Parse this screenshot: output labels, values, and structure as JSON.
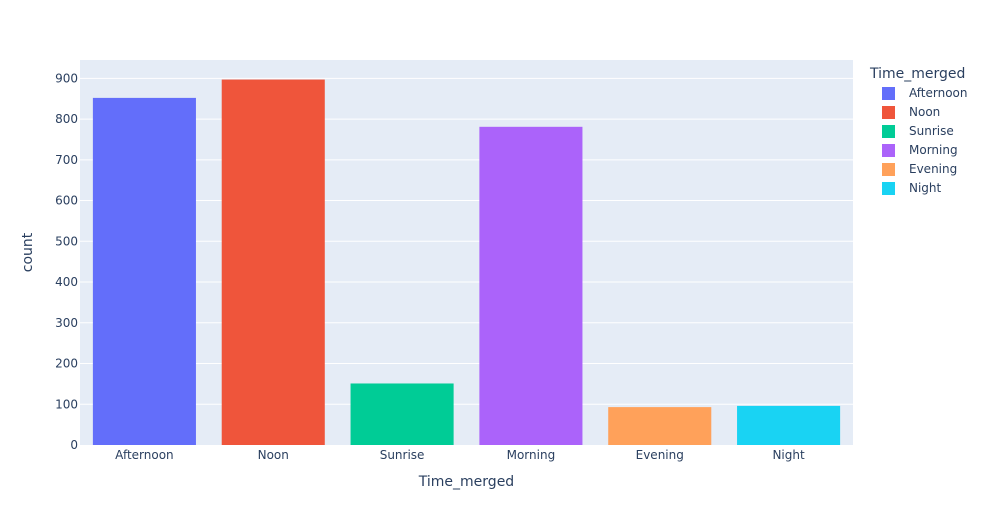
{
  "chart_data": {
    "type": "bar",
    "title": "",
    "xlabel": "Time_merged",
    "ylabel": "count",
    "ylim": [
      0,
      945
    ],
    "yticks": [
      0,
      100,
      200,
      300,
      400,
      500,
      600,
      700,
      800,
      900
    ],
    "grid": true,
    "legend_position": "top-right",
    "legend_title": "Time_merged",
    "categories": [
      "Afternoon",
      "Noon",
      "Sunrise",
      "Morning",
      "Evening",
      "Night"
    ],
    "series": [
      {
        "name": "Afternoon",
        "category": "Afternoon",
        "value": 852,
        "color": "#636efa"
      },
      {
        "name": "Noon",
        "category": "Noon",
        "value": 897,
        "color": "#ef553b"
      },
      {
        "name": "Sunrise",
        "category": "Sunrise",
        "value": 151,
        "color": "#00cc96"
      },
      {
        "name": "Morning",
        "category": "Morning",
        "value": 781,
        "color": "#ab63fa"
      },
      {
        "name": "Evening",
        "category": "Evening",
        "value": 93,
        "color": "#ffa15a"
      },
      {
        "name": "Night",
        "category": "Night",
        "value": 96,
        "color": "#19d3f3"
      }
    ],
    "colors": {
      "plot_background": "#e5ecf6",
      "grid": "#ffffff",
      "text": "#2a3f5f"
    }
  }
}
